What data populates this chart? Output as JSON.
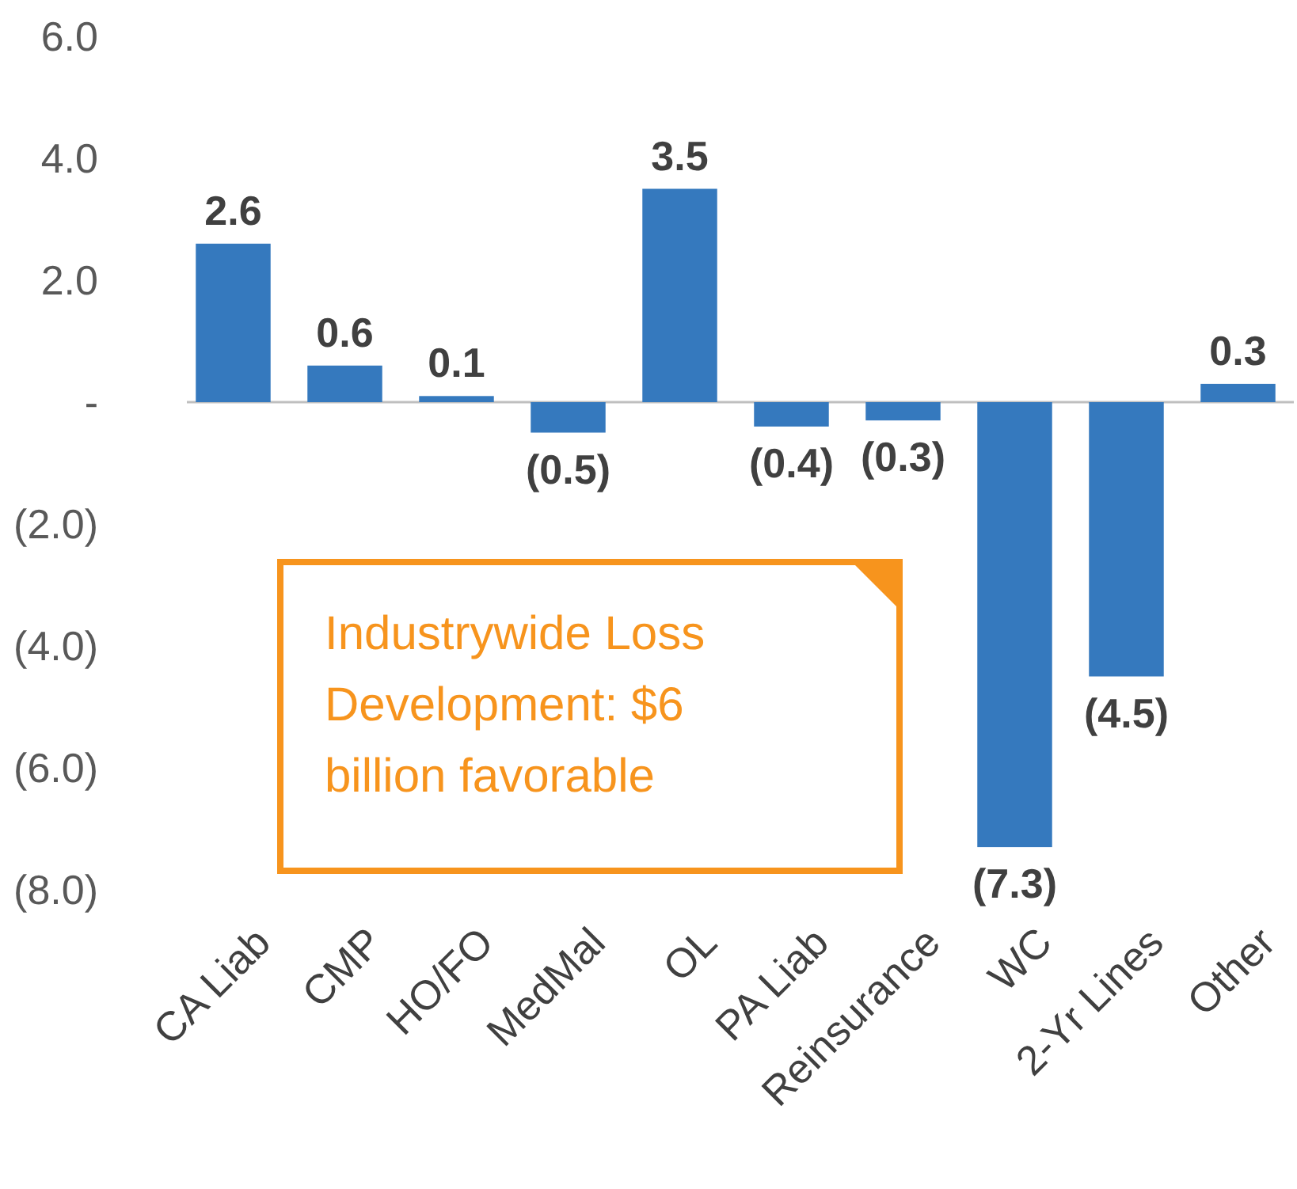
{
  "chart_data": {
    "type": "bar",
    "categories": [
      "CA Liab",
      "CMP",
      "HO/FO",
      "MedMal",
      "OL",
      "PA Liab",
      "Reinsurance",
      "WC",
      "2-Yr Lines",
      "Other"
    ],
    "values": [
      2.6,
      0.6,
      0.1,
      -0.5,
      3.5,
      -0.4,
      -0.3,
      -7.3,
      -4.5,
      0.3
    ],
    "value_labels": [
      "2.6",
      "0.6",
      "0.1",
      "(0.5)",
      "3.5",
      "(0.4)",
      "(0.3)",
      "(7.3)",
      "(4.5)",
      "0.3"
    ],
    "color": "#3579be",
    "ylim": [
      -8,
      6
    ],
    "yticks": [
      {
        "value": 6,
        "label": "6.0"
      },
      {
        "value": 4,
        "label": "4.0"
      },
      {
        "value": 2,
        "label": "2.0"
      },
      {
        "value": 0,
        "label": "-"
      },
      {
        "value": -2,
        "label": "(2.0)"
      },
      {
        "value": -4,
        "label": "(4.0)"
      },
      {
        "value": -6,
        "label": "(6.0)"
      },
      {
        "value": -8,
        "label": "(8.0)"
      }
    ],
    "annotations": [
      "Industrywide Loss Development: $6 billion favorable"
    ]
  }
}
